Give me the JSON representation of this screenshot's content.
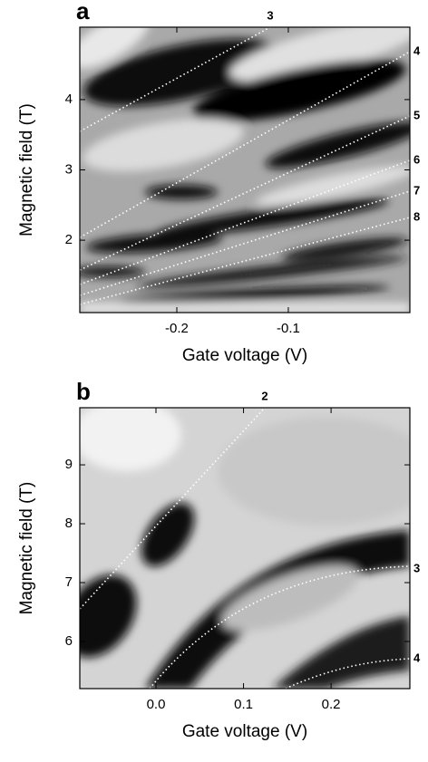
{
  "chart_data": [
    {
      "type": "heatmap",
      "panel_label": "a",
      "xlabel": "Gate voltage (V)",
      "ylabel": "Magnetic field (T)",
      "xlim": [
        -0.287,
        0.009
      ],
      "ylim": [
        0.97,
        5.03
      ],
      "xticks": [
        -0.2,
        -0.1
      ],
      "yticks": [
        2,
        3,
        4
      ],
      "annotations": [
        "3",
        "4",
        "5",
        "6",
        "7",
        "8"
      ]
    },
    {
      "type": "heatmap",
      "panel_label": "b",
      "xlabel": "Gate voltage (V)",
      "ylabel": "Magnetic field (T)",
      "xlim": [
        -0.087,
        0.29
      ],
      "ylim": [
        5.2,
        9.97
      ],
      "xticks": [
        {
          "value": 0,
          "label": "0.0"
        },
        0.1,
        0.2
      ],
      "yticks": [
        6,
        7,
        8,
        9
      ],
      "annotations": [
        "2",
        "3",
        "4"
      ]
    }
  ]
}
